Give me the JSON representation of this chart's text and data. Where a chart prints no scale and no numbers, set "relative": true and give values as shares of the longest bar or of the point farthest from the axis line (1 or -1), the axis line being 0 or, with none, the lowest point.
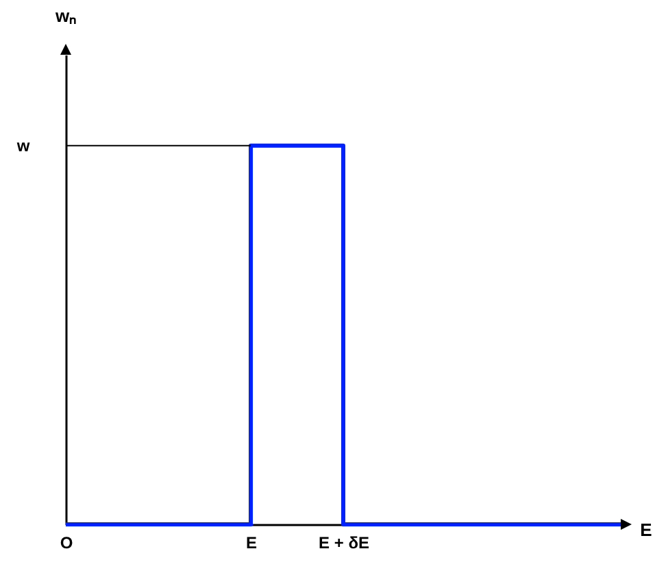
{
  "chart_data": {
    "type": "step",
    "xlabel": "E",
    "annotations": [
      "wₙ"
    ],
    "relative": true,
    "categories": [
      "O",
      null,
      "E",
      "E + δE",
      null,
      null,
      null
    ],
    "series": [
      {
        "color": "#0022ff",
        "values": [
          0,
          0,
          1,
          0,
          0,
          0,
          0
        ]
      }
    ],
    "ref_lines": [
      {
        "axis": "y",
        "value": 1,
        "color": "#000000",
        "label": "w"
      }
    ]
  }
}
